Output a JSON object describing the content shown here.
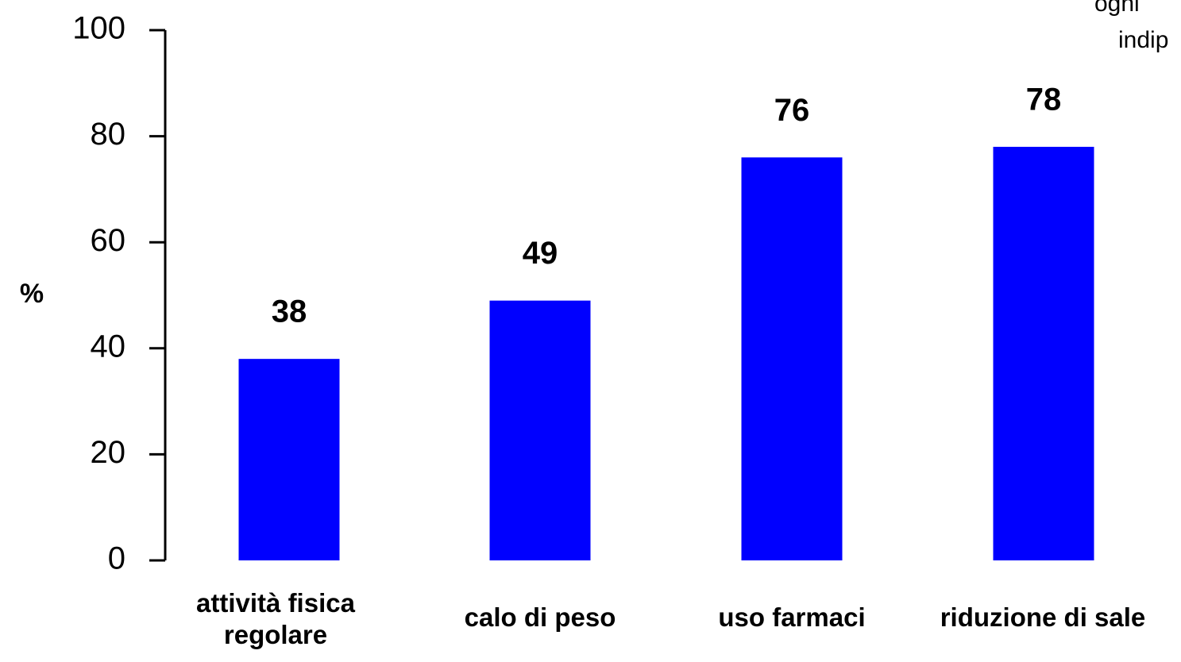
{
  "chart_data": {
    "type": "bar",
    "y_label": "%",
    "annotation": [
      "ogni",
      "indip"
    ],
    "categories": [
      "attività fisica regolare",
      "calo di peso",
      "uso farmaci",
      "riduzione di sale"
    ],
    "values": [
      38,
      49,
      76,
      78
    ],
    "color": "#0000ff",
    "ylim": [
      0,
      100
    ],
    "yticks": [
      0,
      20,
      40,
      60,
      80,
      100
    ],
    "grid": false
  }
}
